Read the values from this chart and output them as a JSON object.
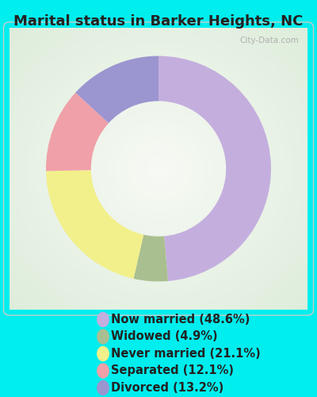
{
  "title": "Marital status in Barker Heights, NC",
  "slices": [
    {
      "label": "Now married (48.6%)",
      "value": 48.6,
      "color": "#C4AEDE"
    },
    {
      "label": "Widowed (4.9%)",
      "value": 4.9,
      "color": "#AABF90"
    },
    {
      "label": "Never married (21.1%)",
      "value": 21.1,
      "color": "#F2F08A"
    },
    {
      "label": "Separated (12.1%)",
      "value": 12.1,
      "color": "#F0A0A8"
    },
    {
      "label": "Divorced (13.2%)",
      "value": 13.2,
      "color": "#9B95D0"
    }
  ],
  "background_color_outer": "#00EEEE",
  "title_fontsize": 13,
  "legend_fontsize": 10.5,
  "watermark": "City-Data.com",
  "donut_width": 0.4,
  "start_angle": 90
}
